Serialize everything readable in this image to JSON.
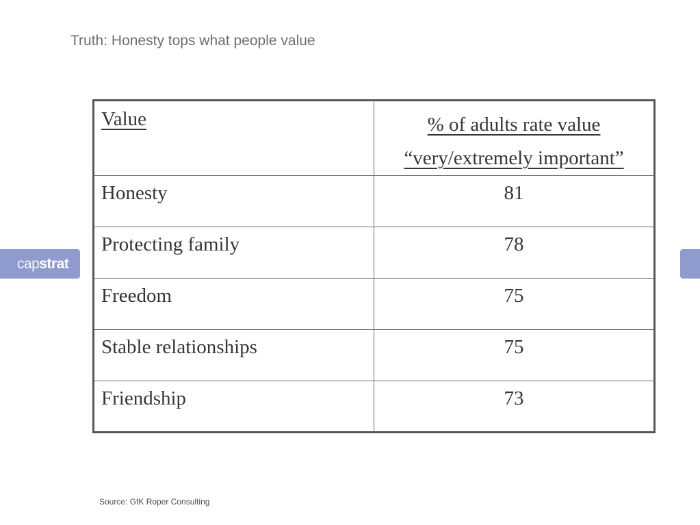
{
  "title": "Truth: Honesty tops what people value",
  "logo": {
    "text_part1": "cap",
    "text_part2": "strat"
  },
  "table": {
    "header": {
      "value_label": "Value",
      "percent_label_line1": "% of adults rate value",
      "percent_label_line2": "“very/extremely important”"
    },
    "rows": [
      {
        "value": "Honesty",
        "percent": "81"
      },
      {
        "value": "Protecting family",
        "percent": "78"
      },
      {
        "value": "Freedom",
        "percent": "75"
      },
      {
        "value": "Stable relationships",
        "percent": "75"
      },
      {
        "value": "Friendship",
        "percent": "73"
      }
    ]
  },
  "source": "Source: GfK Roper Consulting",
  "colors": {
    "tab_accent": "#8e9bcc",
    "title_text": "#6b6e77",
    "table_border": "#55575f"
  }
}
